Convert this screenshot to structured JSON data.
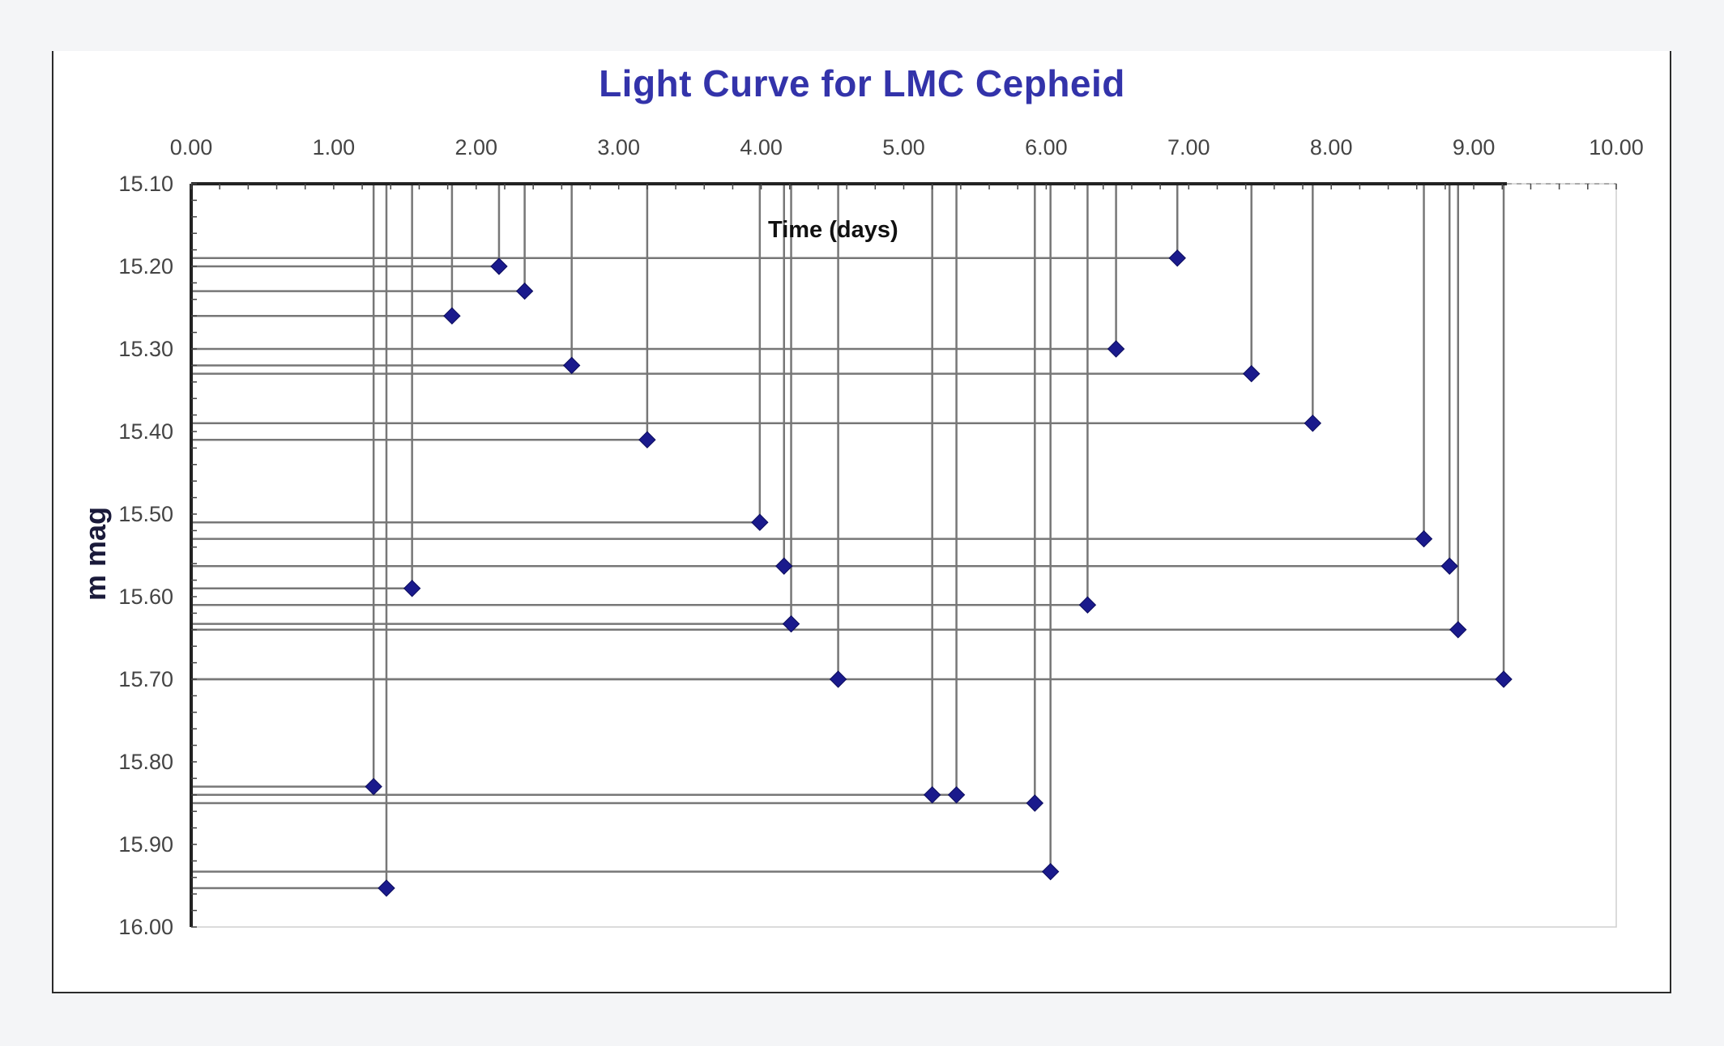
{
  "chart_data": {
    "type": "scatter",
    "title": "Light Curve for LMC Cepheid",
    "xlabel": "Time (days)",
    "ylabel": "m mag",
    "xlim": [
      0,
      10
    ],
    "ylim": [
      15.1,
      16.0
    ],
    "y_inverted": true,
    "x_axis_position": "top",
    "x_tick_labels": [
      "0.00",
      "1.00",
      "2.00",
      "3.00",
      "4.00",
      "5.00",
      "6.00",
      "7.00",
      "8.00",
      "9.00",
      "10.00"
    ],
    "y_tick_labels": [
      "15.10",
      "15.20",
      "15.30",
      "15.40",
      "15.50",
      "15.60",
      "15.70",
      "15.80",
      "15.90",
      "16.00"
    ],
    "grid": false,
    "drop_lines": true,
    "marker": "diamond",
    "marker_color": "#1a1a8c",
    "series": [
      {
        "points": [
          {
            "x": 1.28,
            "y": 15.83
          },
          {
            "x": 1.37,
            "y": 15.953
          },
          {
            "x": 1.55,
            "y": 15.59
          },
          {
            "x": 1.83,
            "y": 15.26
          },
          {
            "x": 2.16,
            "y": 15.2
          },
          {
            "x": 2.34,
            "y": 15.23
          },
          {
            "x": 2.67,
            "y": 15.32
          },
          {
            "x": 3.2,
            "y": 15.41
          },
          {
            "x": 3.99,
            "y": 15.51
          },
          {
            "x": 4.16,
            "y": 15.563
          },
          {
            "x": 4.21,
            "y": 15.633
          },
          {
            "x": 4.54,
            "y": 15.7
          },
          {
            "x": 5.2,
            "y": 15.84
          },
          {
            "x": 5.37,
            "y": 15.84
          },
          {
            "x": 5.92,
            "y": 15.85
          },
          {
            "x": 6.03,
            "y": 15.933
          },
          {
            "x": 6.29,
            "y": 15.61
          },
          {
            "x": 6.49,
            "y": 15.3
          },
          {
            "x": 6.92,
            "y": 15.19
          },
          {
            "x": 7.44,
            "y": 15.33
          },
          {
            "x": 7.87,
            "y": 15.39
          },
          {
            "x": 8.65,
            "y": 15.53
          },
          {
            "x": 8.83,
            "y": 15.563
          },
          {
            "x": 8.89,
            "y": 15.64
          },
          {
            "x": 9.21,
            "y": 15.7
          }
        ]
      }
    ]
  }
}
